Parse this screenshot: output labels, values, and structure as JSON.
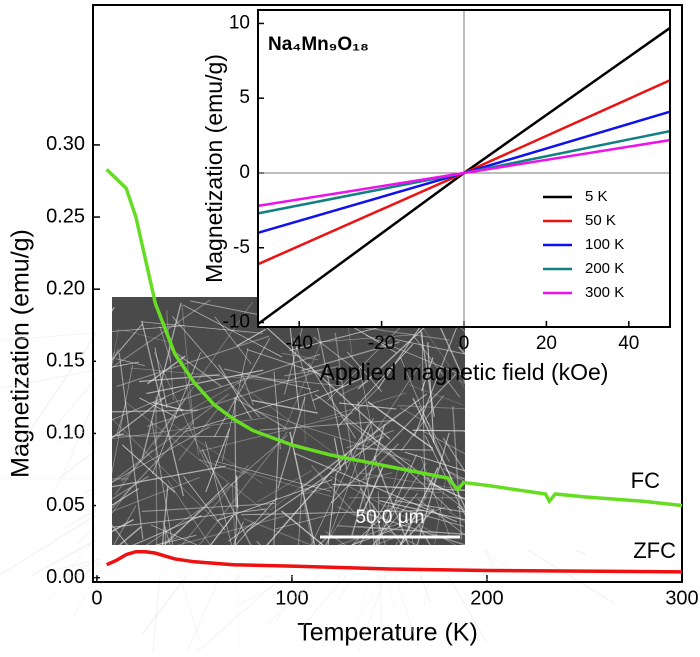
{
  "chart_data": [
    {
      "type": "line",
      "x_label": "Temperature (K)",
      "y_label": "Magnetization (emu/g)",
      "xlim": [
        -2,
        300
      ],
      "ylim": [
        -0.003,
        0.397
      ],
      "xticks": [
        0,
        100,
        200,
        300
      ],
      "yticks": [
        {
          "value": 0,
          "label": "0.00"
        },
        {
          "value": 0.05,
          "label": "0.05"
        },
        {
          "value": 0.1,
          "label": "0.10"
        },
        {
          "value": 0.15,
          "label": "0.15"
        },
        {
          "value": 0.2,
          "label": "0.20"
        },
        {
          "value": 0.25,
          "label": "0.25"
        },
        {
          "value": 0.3,
          "label": "0.30"
        }
      ],
      "series": [
        {
          "name": "FC",
          "color": "#66dd22",
          "x": [
            5,
            15,
            20,
            25,
            30,
            40,
            50,
            60,
            70,
            80,
            100,
            120,
            150,
            180,
            185,
            188,
            200,
            230,
            232,
            235,
            250,
            280,
            300
          ],
          "values": [
            0.283,
            0.27,
            0.25,
            0.22,
            0.19,
            0.155,
            0.135,
            0.12,
            0.11,
            0.102,
            0.092,
            0.085,
            0.077,
            0.069,
            0.061,
            0.066,
            0.064,
            0.058,
            0.053,
            0.058,
            0.056,
            0.053,
            0.05
          ]
        },
        {
          "name": "ZFC",
          "color": "#ee1111",
          "x": [
            5,
            10,
            15,
            20,
            25,
            30,
            40,
            50,
            70,
            100,
            150,
            200,
            300
          ],
          "values": [
            0.009,
            0.012,
            0.016,
            0.018,
            0.018,
            0.017,
            0.013,
            0.011,
            0.009,
            0.008,
            0.006,
            0.005,
            0.004
          ]
        }
      ],
      "annotations": [
        "FC",
        "ZFC",
        "50.0 μm"
      ]
    },
    {
      "type": "line",
      "title": "Na₄Mn₉O₁₈",
      "x_label": "Applied magnetic field (kOe)",
      "y_label": "Magnetization (emu/g)",
      "xlim": [
        -50,
        50
      ],
      "ylim": [
        -10.3,
        10.9
      ],
      "xticks": [
        -40,
        -20,
        0,
        20,
        40
      ],
      "yticks": [
        -10,
        -5,
        0,
        5,
        10
      ],
      "x": [
        -50,
        0,
        50
      ],
      "series": [
        {
          "name": "5 K",
          "color": "#000000",
          "values": [
            -10.1,
            0,
            9.7
          ]
        },
        {
          "name": "50 K",
          "color": "#ee1111",
          "values": [
            -6.1,
            0,
            6.2
          ]
        },
        {
          "name": "100 K",
          "color": "#1111ee",
          "values": [
            -4.0,
            0,
            4.1
          ]
        },
        {
          "name": "200 K",
          "color": "#118080",
          "values": [
            -2.7,
            0,
            2.8
          ]
        },
        {
          "name": "300 K",
          "color": "#ee11ee",
          "values": [
            -2.2,
            0,
            2.2
          ]
        }
      ]
    }
  ]
}
